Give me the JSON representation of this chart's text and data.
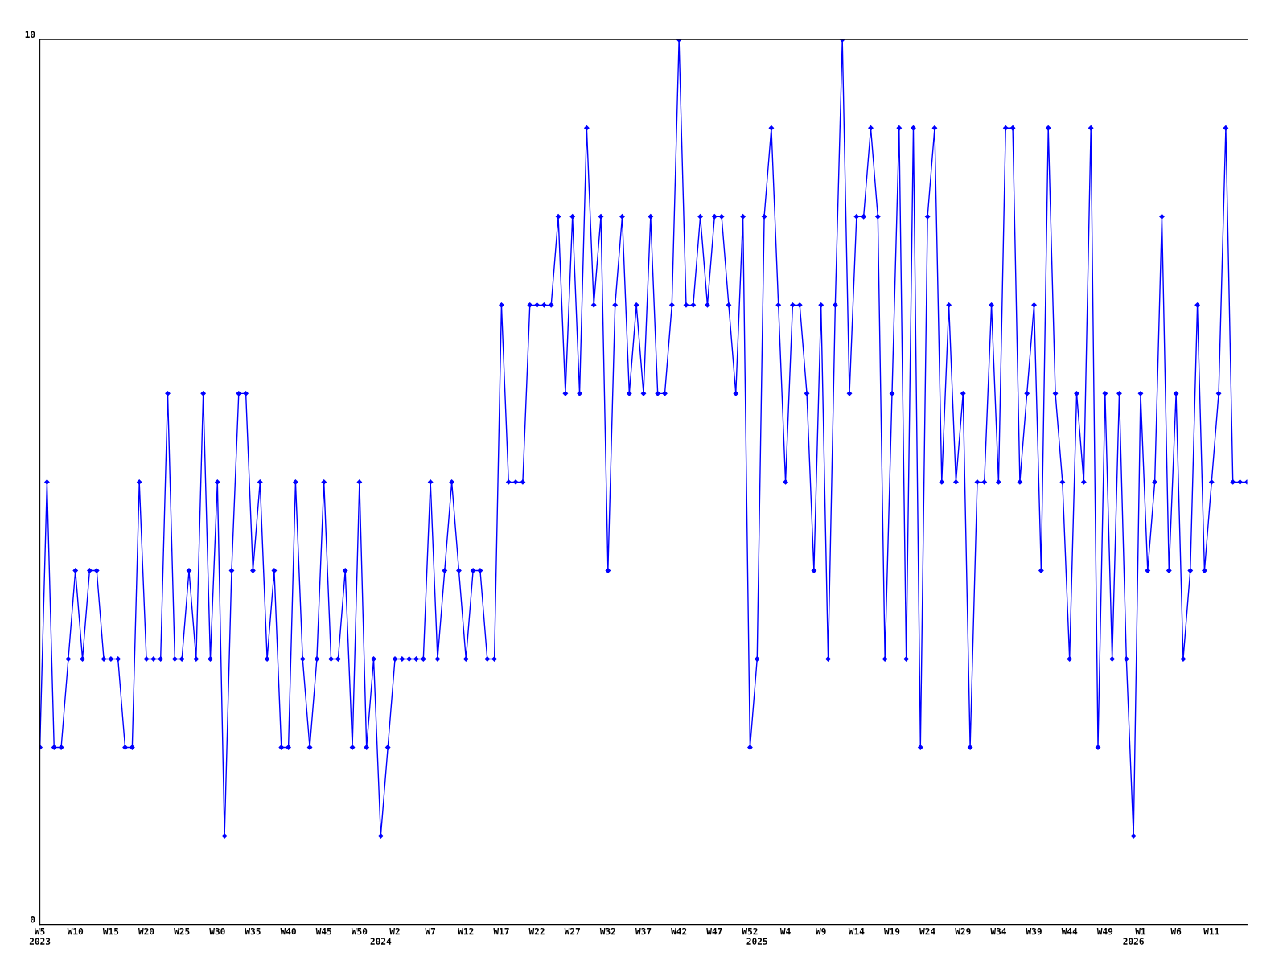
{
  "chart_data": {
    "type": "line",
    "categories": [
      "W5\n2023",
      null,
      null,
      null,
      null,
      "W10",
      null,
      null,
      null,
      null,
      "W15",
      null,
      null,
      null,
      null,
      "W20",
      null,
      null,
      null,
      null,
      "W25",
      null,
      null,
      null,
      null,
      "W30",
      null,
      null,
      null,
      null,
      "W35",
      null,
      null,
      null,
      null,
      "W40",
      null,
      null,
      null,
      null,
      "W45",
      null,
      null,
      null,
      null,
      "W50",
      null,
      null,
      "\n2024",
      null,
      "W2",
      null,
      null,
      null,
      null,
      "W7",
      null,
      null,
      null,
      null,
      "W12",
      null,
      null,
      null,
      null,
      "W17",
      null,
      null,
      null,
      null,
      "W22",
      null,
      null,
      null,
      null,
      "W27",
      null,
      null,
      null,
      null,
      "W32",
      null,
      null,
      null,
      null,
      "W37",
      null,
      null,
      null,
      null,
      "W42",
      null,
      null,
      null,
      null,
      "W47",
      null,
      null,
      null,
      null,
      "W52",
      "\n2025",
      null,
      null,
      null,
      "W4",
      null,
      null,
      null,
      null,
      "W9",
      null,
      null,
      null,
      null,
      "W14",
      null,
      null,
      null,
      null,
      "W19",
      null,
      null,
      null,
      null,
      "W24",
      null,
      null,
      null,
      null,
      "W29",
      null,
      null,
      null,
      null,
      "W34",
      null,
      null,
      null,
      null,
      "W39",
      null,
      null,
      null,
      null,
      "W44",
      null,
      null,
      null,
      null,
      "W49",
      null,
      null,
      null,
      "\n2026",
      "W1",
      null,
      null,
      null,
      null,
      "W6",
      null,
      null,
      null,
      null,
      "W11",
      null,
      null,
      null,
      null,
      null
    ],
    "series": [
      {
        "color": "#0000ff",
        "values": [
          2,
          5,
          2,
          2,
          3,
          4,
          3,
          4,
          4,
          3,
          3,
          3,
          2,
          2,
          5,
          3,
          3,
          3,
          6,
          3,
          3,
          4,
          3,
          6,
          3,
          5,
          1,
          4,
          6,
          6,
          4,
          5,
          3,
          4,
          2,
          2,
          5,
          3,
          2,
          3,
          5,
          3,
          3,
          4,
          2,
          5,
          2,
          3,
          1,
          2,
          3,
          3,
          3,
          3,
          3,
          5,
          3,
          4,
          5,
          4,
          3,
          4,
          4,
          3,
          3,
          7,
          5,
          5,
          5,
          7,
          7,
          7,
          7,
          8,
          6,
          8,
          6,
          9,
          7,
          8,
          4,
          7,
          8,
          6,
          7,
          6,
          8,
          6,
          6,
          7,
          10,
          7,
          7,
          8,
          7,
          8,
          8,
          7,
          6,
          8,
          2,
          3,
          8,
          9,
          7,
          5,
          7,
          7,
          6,
          4,
          7,
          3,
          7,
          10,
          6,
          8,
          8,
          9,
          8,
          3,
          6,
          9,
          3,
          9,
          2,
          8,
          9,
          5,
          7,
          5,
          6,
          2,
          5,
          5,
          7,
          5,
          9,
          9,
          5,
          6,
          7,
          4,
          9,
          6,
          5,
          3,
          6,
          5,
          9,
          2,
          6,
          3,
          6,
          3,
          1,
          6,
          4,
          5,
          8,
          4,
          6,
          3,
          4,
          7,
          4,
          5,
          6,
          9,
          5,
          5,
          5
        ]
      }
    ],
    "ylim": [
      0,
      10
    ],
    "yticks": [
      0,
      10
    ],
    "grid": false,
    "marker": "diamond",
    "line_style": "solid"
  }
}
